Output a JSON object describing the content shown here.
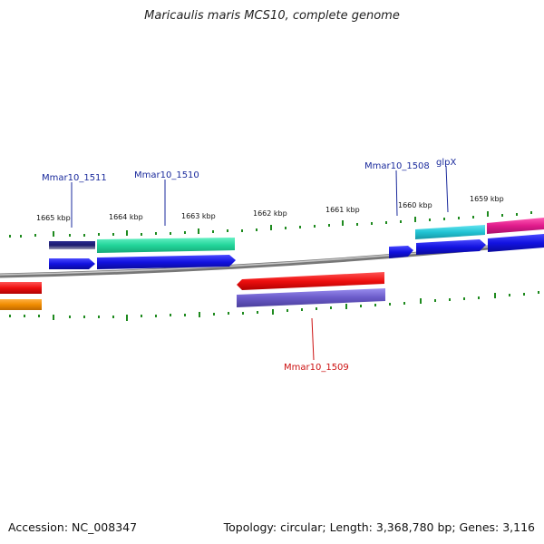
{
  "title": "Maricaulis maris MCS10, complete genome",
  "footer": {
    "accession": "Accession: NC_008347",
    "info": "Topology: circular; Length: 3,368,780 bp; Genes: 3,116"
  },
  "ticks": [
    "1665 kbp",
    "1664 kbp",
    "1663 kbp",
    "1662 kbp",
    "1661 kbp",
    "1660 kbp",
    "1659 kbp"
  ],
  "genes": [
    {
      "id": "mmar10_1511",
      "label": "Mmar10_1511",
      "color": "#1a2a9c"
    },
    {
      "id": "mmar10_1510",
      "label": "Mmar10_1510",
      "color": "#1a2a9c"
    },
    {
      "id": "mmar10_1508",
      "label": "Mmar10_1508",
      "color": "#1a2a9c"
    },
    {
      "id": "glpx",
      "label": "glpX",
      "color": "#1a2a9c"
    },
    {
      "id": "mmar10_1509",
      "label": "Mmar10_1509",
      "color": "#cc1111"
    }
  ],
  "colors": {
    "backbone": "#888888",
    "tick": "#1e8a1e",
    "forward_cds": "#1212e0",
    "reverse_cds": "#ee0f0f",
    "teal": "#22d69a",
    "cyan": "#22c4d4",
    "magenta": "#e01b8c",
    "purple": "#6a5ac8",
    "navy": "#1b1b6e",
    "orange": "#f08c00"
  }
}
